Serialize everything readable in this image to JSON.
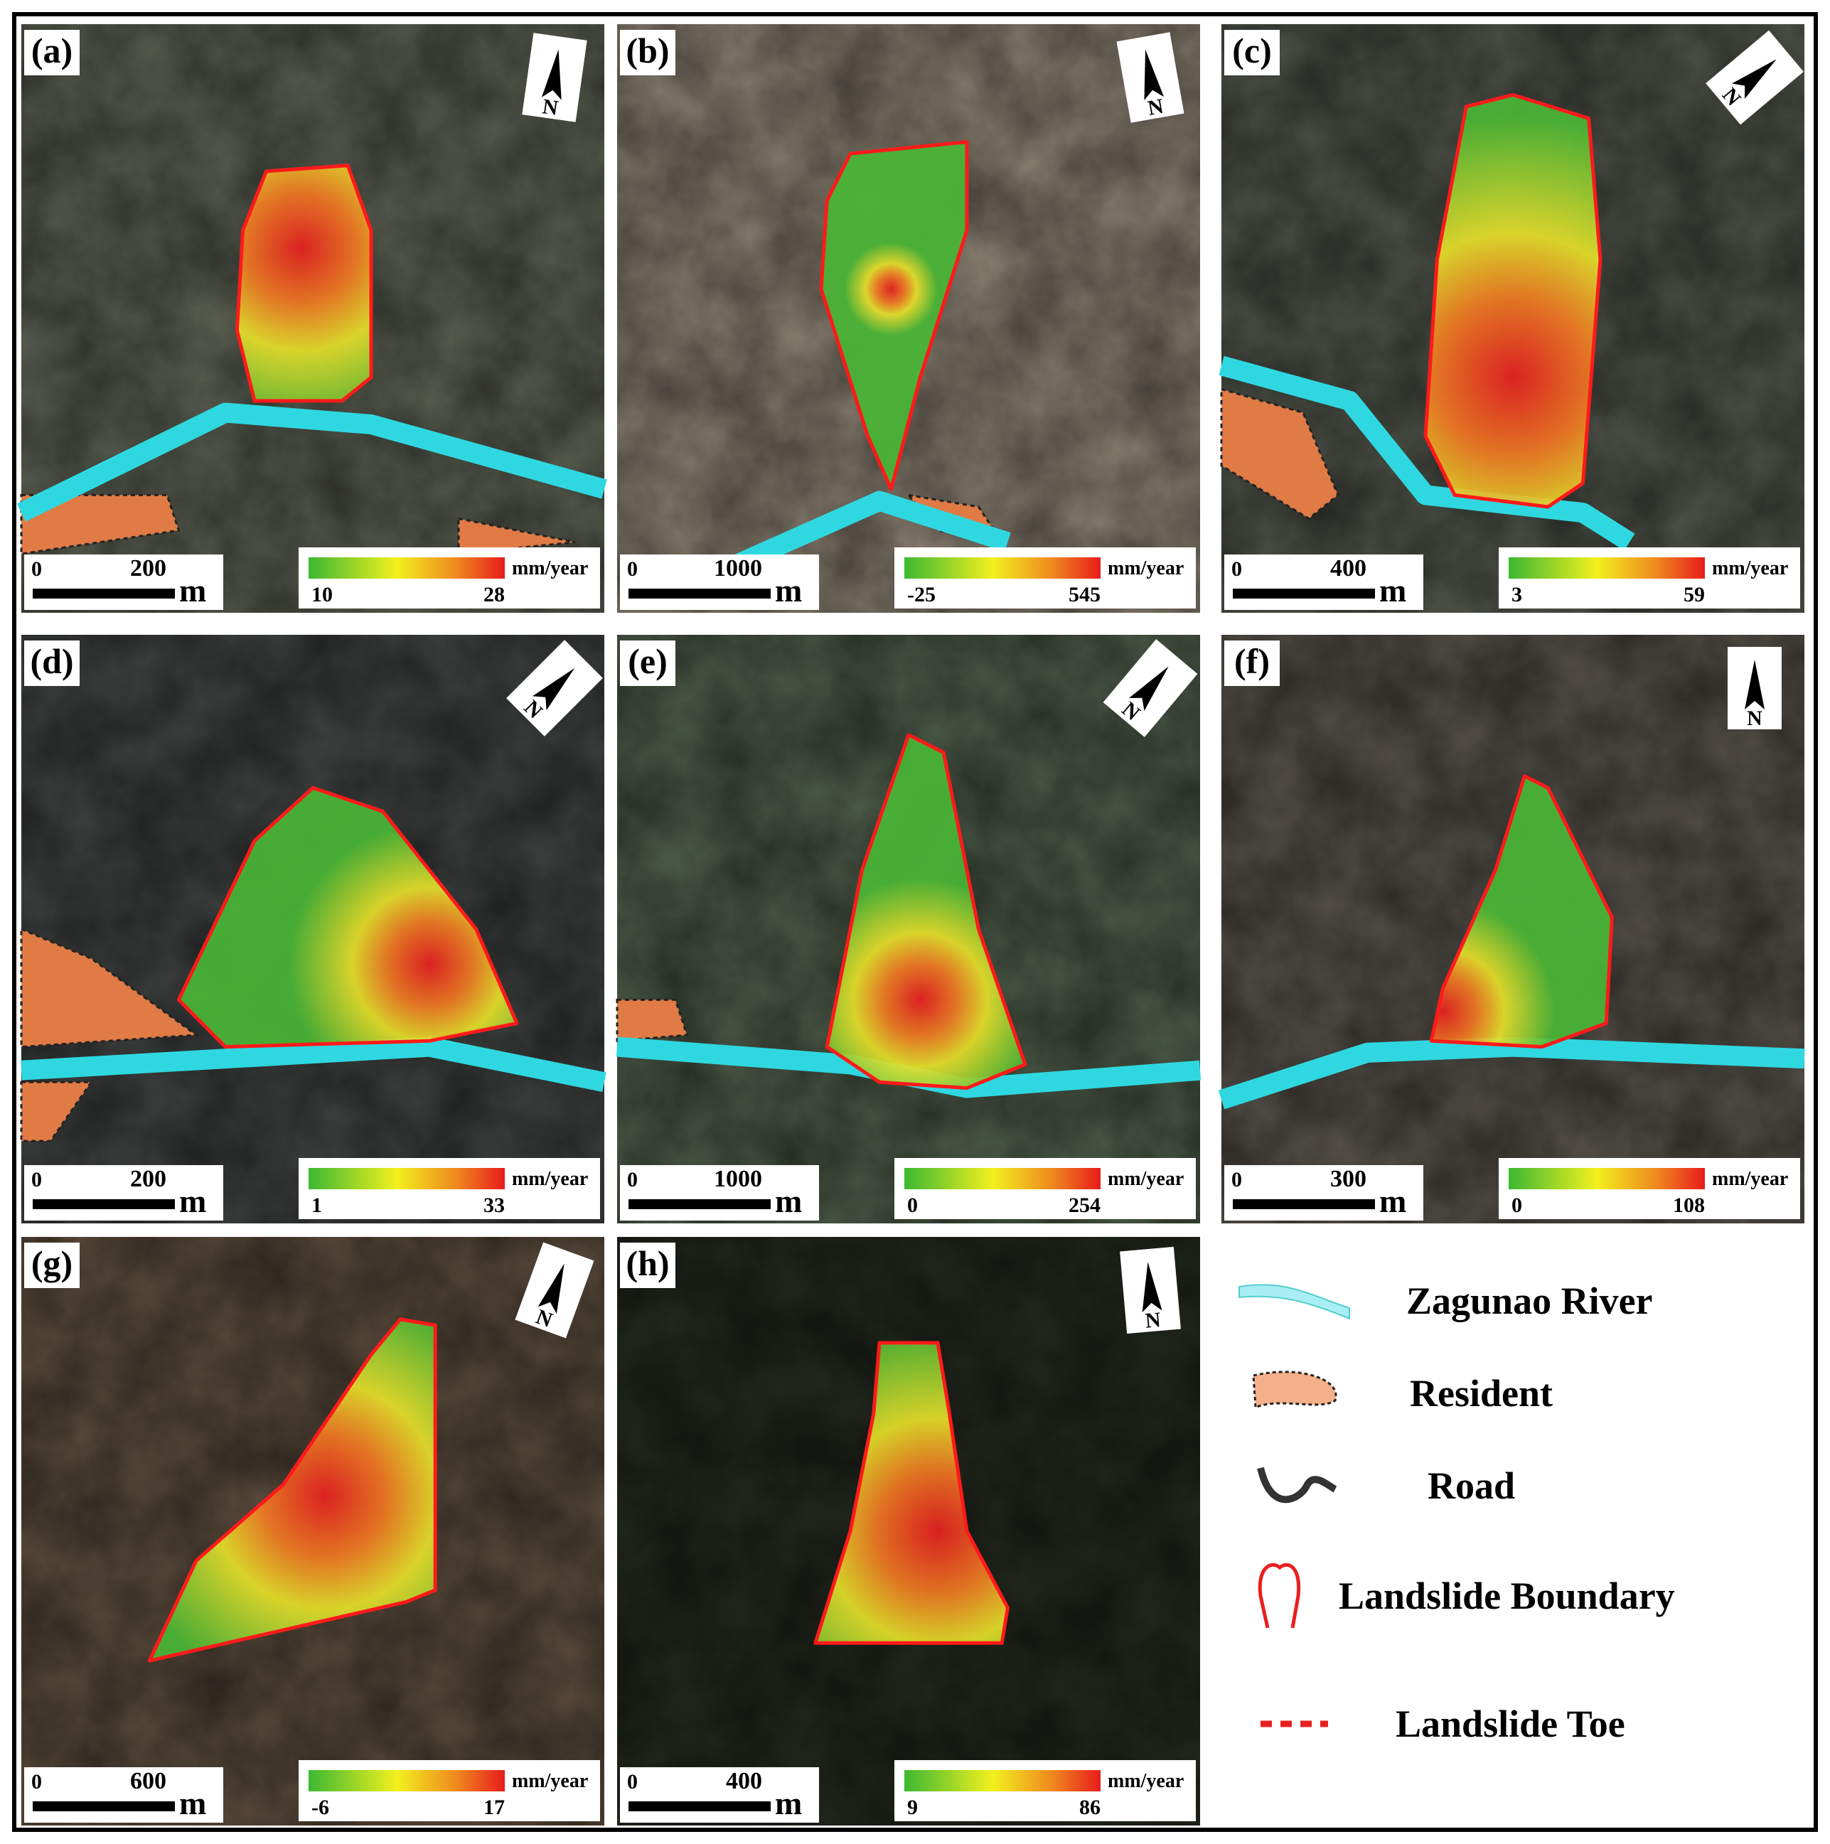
{
  "panels": [
    {
      "label": "(a)",
      "scale_bar": {
        "ticks": [
          0,
          200
        ],
        "unit": "m"
      },
      "colorbar": {
        "min": 10,
        "max": 28,
        "unit": "mm/year"
      }
    },
    {
      "label": "(b)",
      "scale_bar": {
        "ticks": [
          0,
          1000
        ],
        "unit": "m"
      },
      "colorbar": {
        "min": -25,
        "max": 545,
        "unit": "mm/year"
      }
    },
    {
      "label": "(c)",
      "scale_bar": {
        "ticks": [
          0,
          400
        ],
        "unit": "m"
      },
      "colorbar": {
        "min": 3,
        "max": 59,
        "unit": "mm/year"
      }
    },
    {
      "label": "(d)",
      "scale_bar": {
        "ticks": [
          0,
          200
        ],
        "unit": "m"
      },
      "colorbar": {
        "min": 1,
        "max": 33,
        "unit": "mm/year"
      }
    },
    {
      "label": "(e)",
      "scale_bar": {
        "ticks": [
          0,
          1000
        ],
        "unit": "m"
      },
      "colorbar": {
        "min": 0,
        "max": 254,
        "unit": "mm/year"
      }
    },
    {
      "label": "(f)",
      "scale_bar": {
        "ticks": [
          0,
          300
        ],
        "unit": "m"
      },
      "colorbar": {
        "min": 0,
        "max": 108,
        "unit": "mm/year"
      }
    },
    {
      "label": "(g)",
      "scale_bar": {
        "ticks": [
          0,
          600
        ],
        "unit": "m"
      },
      "colorbar": {
        "min": -6,
        "max": 17,
        "unit": "mm/year"
      }
    },
    {
      "label": "(h)",
      "scale_bar": {
        "ticks": [
          0,
          400
        ],
        "unit": "m"
      },
      "colorbar": {
        "min": 9,
        "max": 86,
        "unit": "mm/year"
      }
    }
  ],
  "north": "N",
  "legend": [
    {
      "label": "Zagunao River"
    },
    {
      "label": "Resident"
    },
    {
      "label": "Road"
    },
    {
      "label": "Landslide Boundary"
    },
    {
      "label": "Landslide Toe"
    }
  ]
}
